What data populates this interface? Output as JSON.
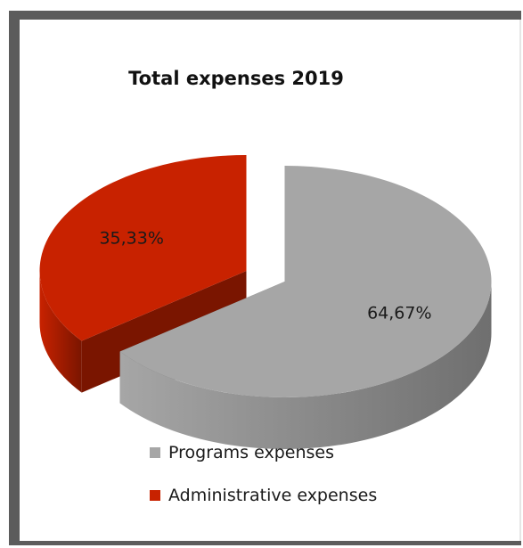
{
  "chart_data": {
    "type": "pie",
    "title": "Total expenses 2019",
    "slices": [
      {
        "label": "Programs expenses",
        "value": 64.67,
        "value_label": "64,67%",
        "color": "#a6a6a6",
        "side_color": "#6f6f6f"
      },
      {
        "label": "Administrative expenses",
        "value": 35.33,
        "value_label": "35,33%",
        "color": "#c82200",
        "side_color": "#7a1500"
      }
    ],
    "three_d": true,
    "exploded": true,
    "legend": "bottom"
  }
}
